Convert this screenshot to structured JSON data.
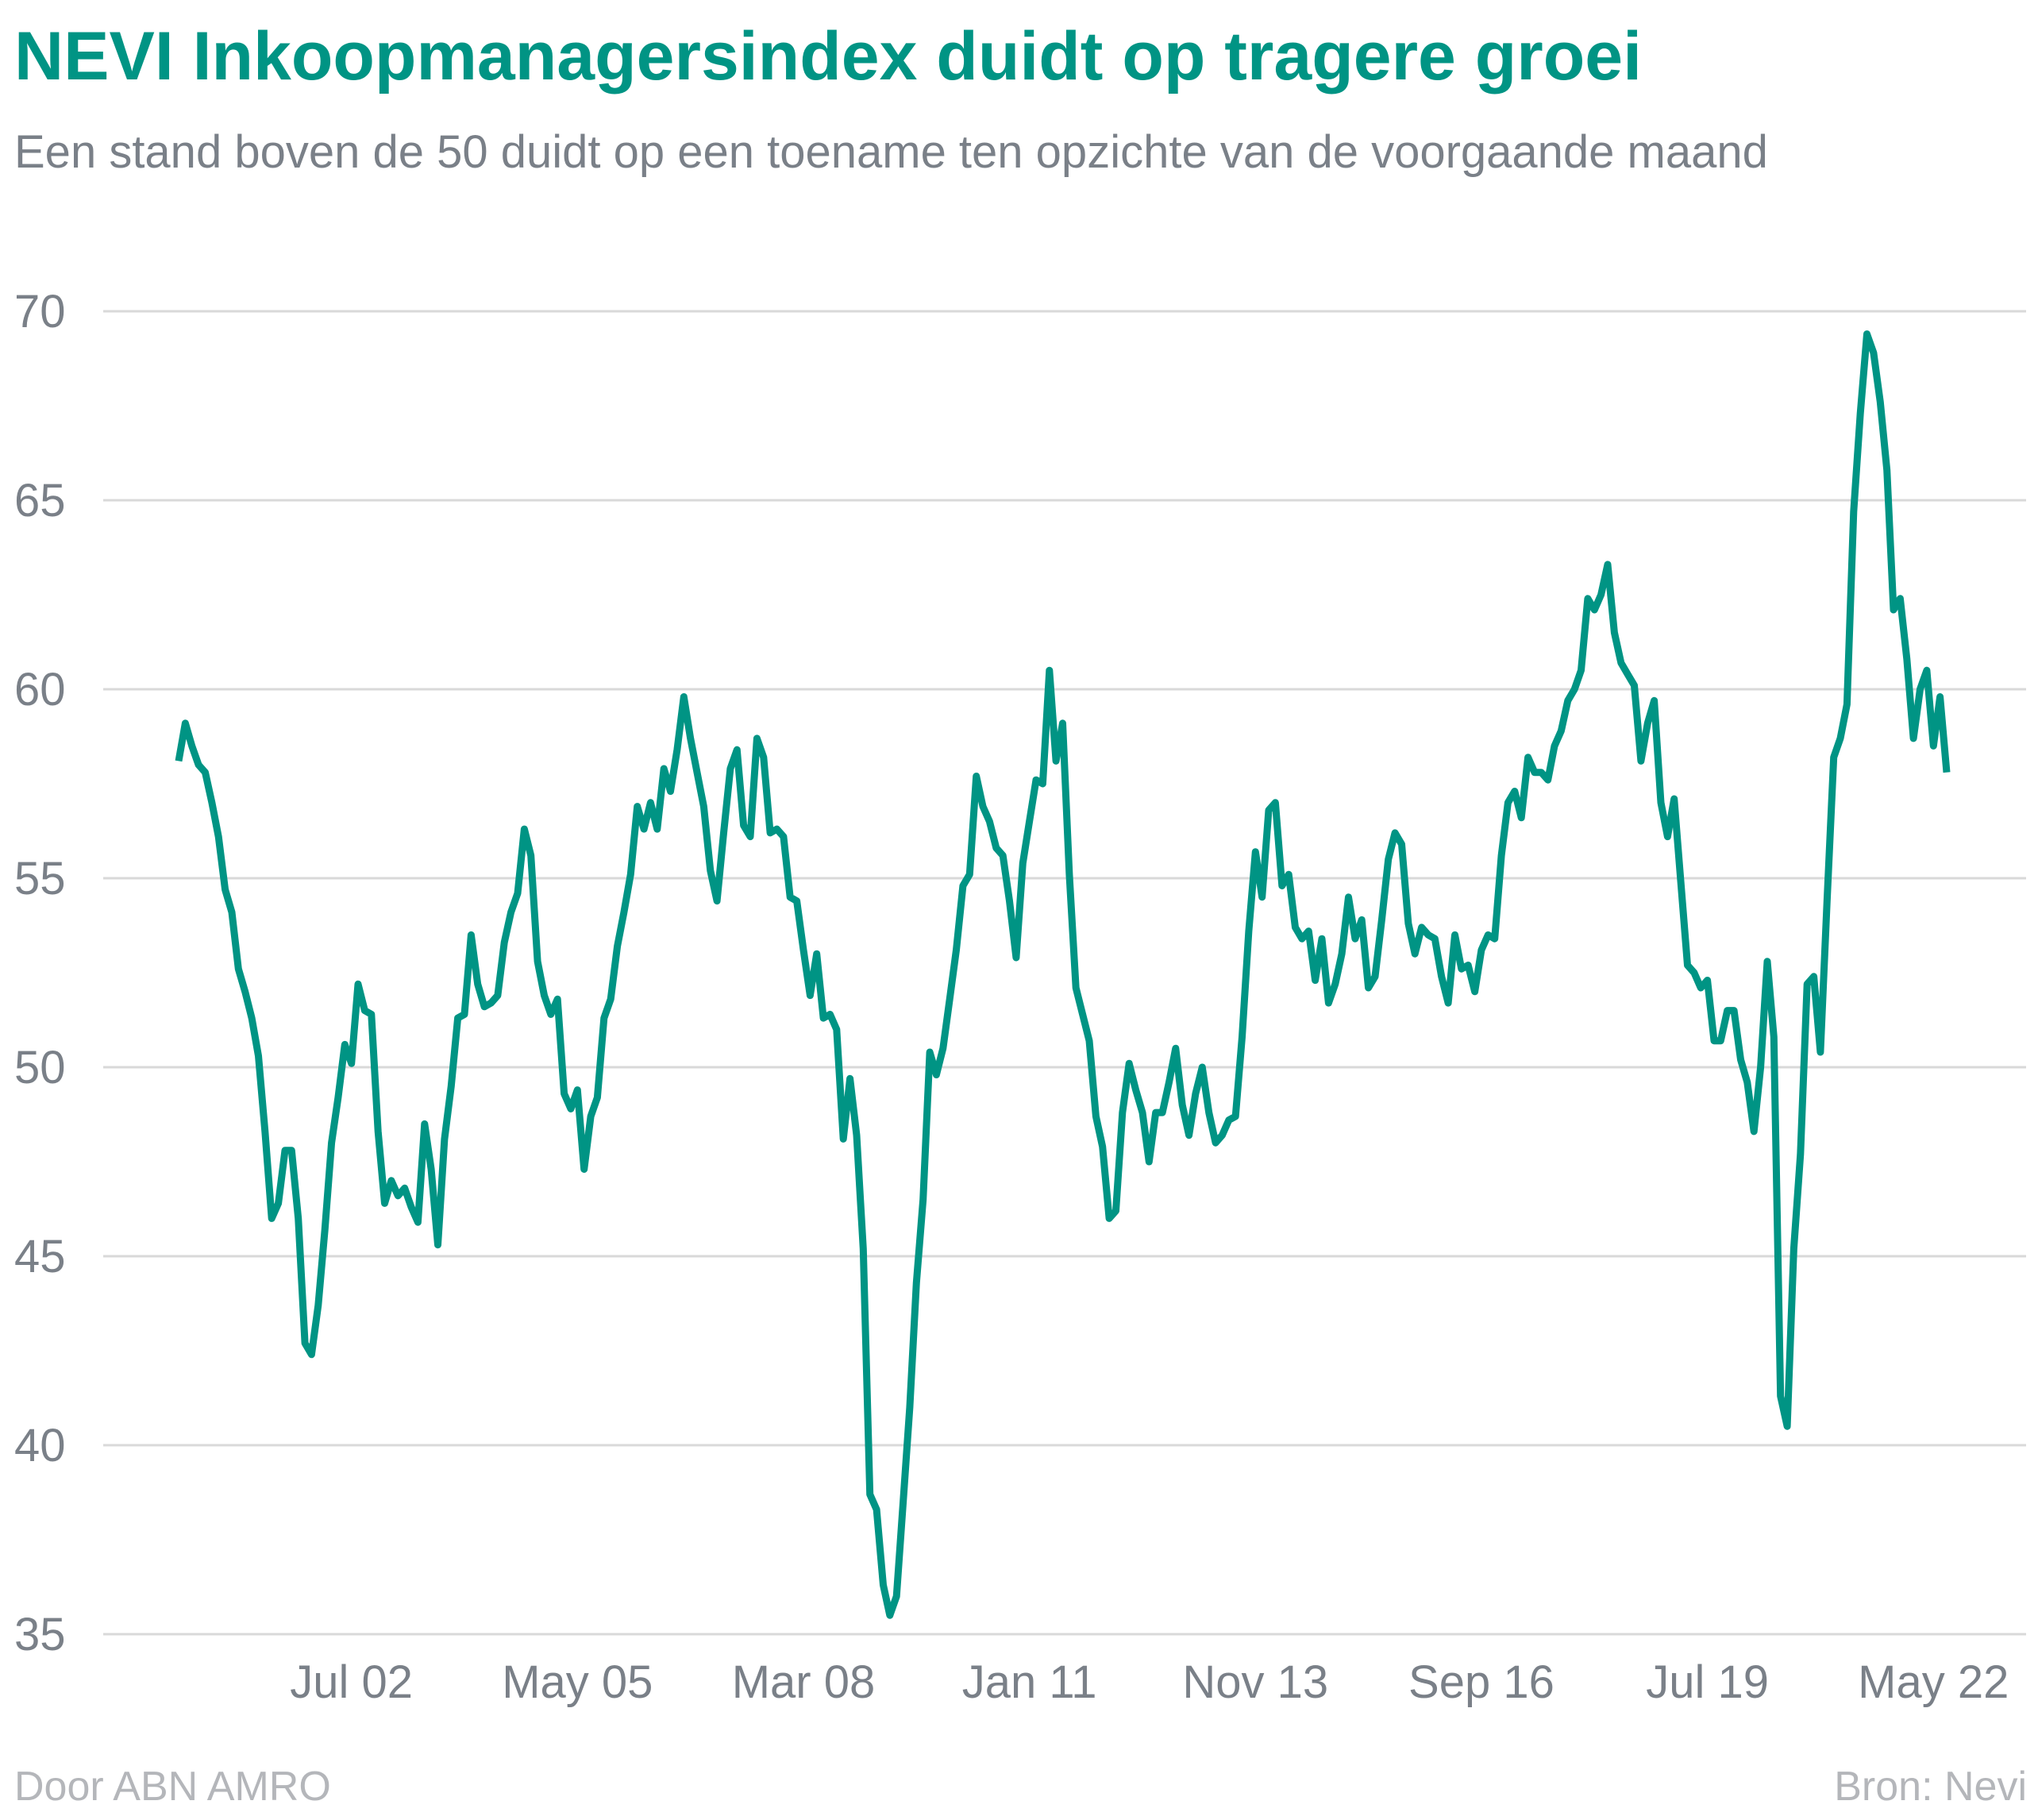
{
  "header": {
    "title": "NEVI Inkoopmanagersindex duidt op tragere groei",
    "subtitle": "Een stand boven de 50 duidt op een toename ten opzichte van de voorgaande maand"
  },
  "footer": {
    "left": "Door ABN AMRO",
    "right": "Bron: Nevi"
  },
  "colors": {
    "accent": "#009484",
    "muted_text": "#7a8088",
    "gridline": "#d9d9d9",
    "footer_text": "#b4b6ba"
  },
  "chart_data": {
    "type": "line",
    "x_unit": "month",
    "x_start": "2000-05",
    "x_step_months": 1,
    "ylim": [
      35,
      70
    ],
    "yticks": [
      35,
      40,
      45,
      50,
      55,
      60,
      65,
      70
    ],
    "xticks": [
      {
        "label": "Jul 02",
        "date": "2002-07"
      },
      {
        "label": "May 05",
        "date": "2005-05"
      },
      {
        "label": "Mar 08",
        "date": "2008-03"
      },
      {
        "label": "Jan 11",
        "date": "2011-01"
      },
      {
        "label": "Nov 13",
        "date": "2013-11"
      },
      {
        "label": "Sep 16",
        "date": "2016-09"
      },
      {
        "label": "Jul 19",
        "date": "2019-07"
      },
      {
        "label": "May 22",
        "date": "2022-05"
      }
    ],
    "grid": true,
    "legend": "none",
    "series": [
      {
        "color": "#009484",
        "values": [
          58.1,
          59.1,
          58.5,
          58.0,
          57.8,
          57.0,
          56.1,
          54.7,
          54.1,
          52.6,
          52.0,
          51.3,
          50.3,
          48.3,
          46.0,
          46.4,
          47.8,
          47.8,
          46.0,
          42.7,
          42.4,
          43.7,
          45.7,
          48.0,
          49.2,
          50.6,
          50.1,
          52.2,
          51.5,
          51.4,
          48.3,
          46.4,
          47.0,
          46.6,
          46.8,
          46.3,
          45.9,
          48.5,
          47.3,
          45.3,
          48.1,
          49.5,
          51.3,
          51.4,
          53.5,
          52.2,
          51.6,
          51.7,
          51.9,
          53.3,
          54.1,
          54.6,
          56.3,
          55.6,
          52.8,
          51.9,
          51.4,
          51.8,
          49.3,
          48.9,
          49.4,
          47.3,
          48.7,
          49.2,
          51.3,
          51.8,
          53.2,
          54.1,
          55.1,
          56.9,
          56.3,
          57.0,
          56.3,
          57.9,
          57.3,
          58.4,
          59.8,
          58.7,
          57.8,
          56.9,
          55.2,
          54.4,
          56.2,
          57.9,
          58.4,
          56.4,
          56.1,
          58.7,
          58.2,
          56.2,
          56.3,
          56.1,
          54.5,
          54.4,
          53.1,
          51.9,
          53.0,
          51.3,
          51.4,
          51.0,
          48.1,
          49.7,
          48.2,
          45.2,
          38.7,
          38.3,
          36.3,
          35.5,
          36.0,
          38.5,
          41.0,
          44.3,
          46.5,
          50.4,
          49.8,
          50.5,
          51.8,
          53.1,
          54.8,
          55.1,
          57.7,
          56.9,
          56.5,
          55.8,
          55.6,
          54.4,
          52.9,
          55.4,
          56.5,
          57.6,
          57.5,
          60.5,
          58.1,
          59.1,
          55.1,
          52.1,
          51.4,
          50.7,
          48.7,
          47.9,
          46.0,
          46.2,
          48.8,
          50.1,
          49.4,
          48.8,
          47.5,
          48.8,
          48.8,
          49.6,
          50.5,
          49.0,
          48.2,
          49.3,
          50.0,
          48.8,
          48.0,
          48.2,
          48.6,
          48.7,
          50.8,
          53.6,
          55.7,
          54.5,
          56.8,
          57.0,
          54.8,
          55.1,
          53.7,
          53.4,
          53.6,
          52.3,
          53.4,
          51.7,
          52.2,
          53.0,
          54.5,
          53.4,
          53.9,
          52.1,
          52.4,
          53.9,
          55.5,
          56.2,
          55.9,
          53.8,
          53.0,
          53.7,
          53.5,
          53.4,
          52.4,
          51.7,
          53.5,
          52.6,
          52.7,
          52.0,
          53.1,
          53.5,
          53.4,
          55.6,
          57.0,
          57.3,
          56.6,
          58.2,
          57.8,
          57.8,
          57.6,
          58.5,
          58.9,
          59.7,
          60.0,
          60.5,
          62.4,
          62.1,
          62.5,
          63.3,
          61.5,
          60.7,
          60.4,
          60.1,
          58.1,
          59.1,
          59.7,
          57.0,
          56.1,
          57.1,
          54.9,
          52.7,
          52.5,
          52.1,
          52.3,
          50.7,
          50.7,
          51.5,
          51.5,
          50.2,
          49.6,
          48.3,
          50.0,
          52.8,
          50.8,
          41.3,
          40.5,
          45.2,
          47.7,
          52.2,
          52.4,
          50.4,
          54.4,
          58.2,
          58.7,
          59.6,
          64.7,
          67.3,
          69.4,
          68.9,
          67.6,
          65.8,
          62.1,
          62.4,
          60.8,
          58.7,
          60.0,
          60.5,
          58.5,
          59.8,
          57.8
        ]
      }
    ]
  }
}
